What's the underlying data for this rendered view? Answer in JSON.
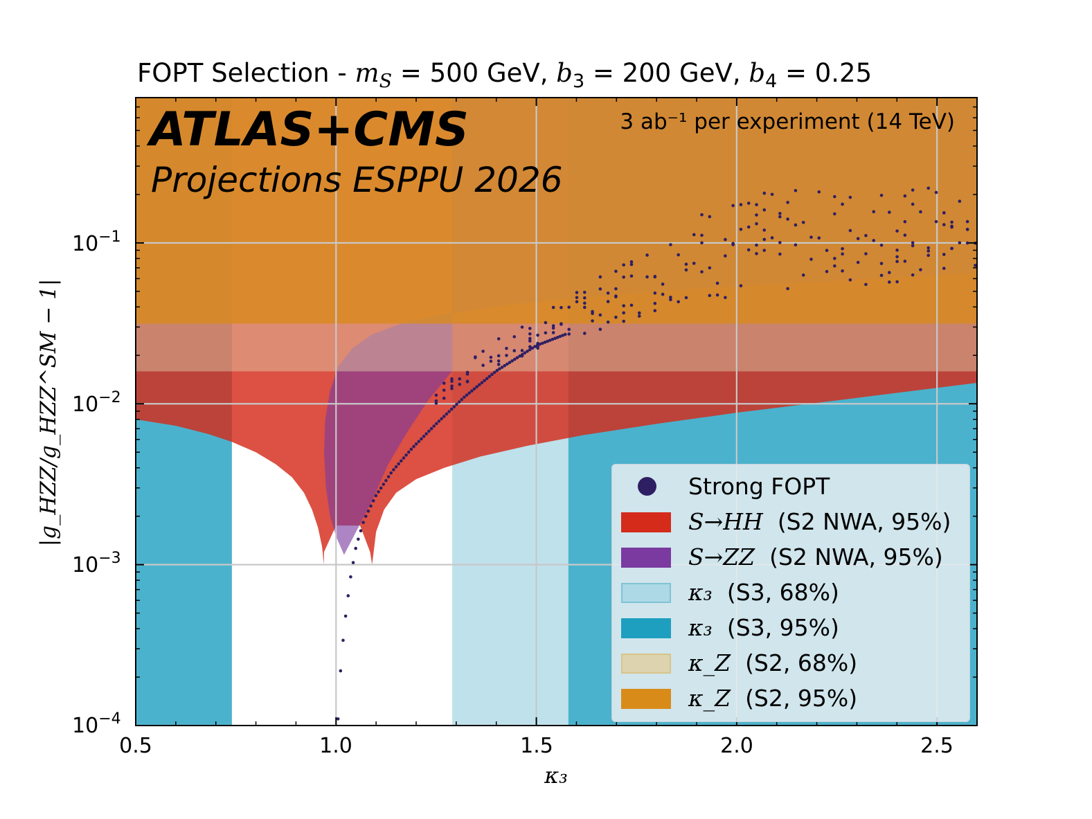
{
  "chart_data": {
    "type": "scatter",
    "title_prefix": "FOPT Selection - ",
    "title_params": [
      {
        "symbol": "m",
        "sub": "S",
        "rel": " = ",
        "value": "500 GeV"
      },
      {
        "symbol": "b",
        "sub": "3",
        "rel": " = ",
        "value": "200 GeV"
      },
      {
        "symbol": "b",
        "sub": "4",
        "rel": " = ",
        "value": "0.25"
      }
    ],
    "title": "FOPT Selection - mS = 500 GeV, b3 = 200 GeV, b4 = 0.25",
    "experiment_label": "ATLAS+CMS",
    "projection_label": "Projections ESPPU 2026",
    "luminosity_label": "3 ab⁻¹  per experiment (14 TeV)",
    "xlabel": "κ₃",
    "ylabel": "|g_HZZ/g_HZZ^SM − 1|",
    "xlim": [
      0.5,
      2.6
    ],
    "ylim": [
      0.0001,
      0.8
    ],
    "yscale": "log",
    "xticks": [
      0.5,
      1.0,
      1.5,
      2.0,
      2.5
    ],
    "xtick_labels": [
      "0.5",
      "1.0",
      "1.5",
      "2.0",
      "2.5"
    ],
    "yticks": [
      0.0001,
      0.001,
      0.01,
      0.1
    ],
    "ytick_labels": [
      {
        "base": "10",
        "exp": "−4"
      },
      {
        "base": "10",
        "exp": "−3"
      },
      {
        "base": "10",
        "exp": "−2"
      },
      {
        "base": "10",
        "exp": "−1"
      }
    ],
    "grid": true,
    "legend_position": "lower-right",
    "bands": {
      "kappa3_S3_68": {
        "color": "#add8e6",
        "ranges": [
          [
            0.5,
            0.74
          ],
          [
            1.29,
            2.6
          ]
        ]
      },
      "kappa3_S3_95": {
        "color": "#1f9fc0",
        "ranges": [
          [
            0.5,
            0.74
          ],
          [
            1.58,
            2.6
          ]
        ]
      },
      "kappaZ_S2_68": {
        "color": "#ddd3ae",
        "y_from": 0.0159
      },
      "kappaZ_S2_95": {
        "color": "#d98b1a",
        "y_from": 0.0315
      }
    },
    "exclusion_S_HH": {
      "color": "#d42b1a",
      "min_y": 0.001,
      "left_edge_x": [
        0.97,
        0.965,
        0.955,
        0.94,
        0.92,
        0.89,
        0.85,
        0.8,
        0.74,
        0.68,
        0.6,
        0.5
      ],
      "left_edge_y": [
        0.001,
        0.0013,
        0.0017,
        0.0022,
        0.0028,
        0.0035,
        0.0042,
        0.005,
        0.0058,
        0.0065,
        0.0073,
        0.008
      ],
      "right_edge_x": [
        1.09,
        1.1,
        1.12,
        1.15,
        1.2,
        1.27,
        1.36,
        1.48,
        1.62,
        1.8,
        2.0,
        2.25,
        2.6
      ],
      "right_edge_y": [
        0.001,
        0.0016,
        0.0022,
        0.0028,
        0.0034,
        0.004,
        0.0047,
        0.0055,
        0.0064,
        0.0075,
        0.0088,
        0.0105,
        0.0135
      ]
    },
    "exclusion_S_ZZ": {
      "color": "#7a3aa0",
      "left_edge_x": [
        1.02,
        1.0,
        0.985,
        0.975,
        0.97,
        0.973,
        0.985,
        1.005,
        1.04,
        1.09,
        1.17,
        1.27,
        1.42,
        1.62,
        1.9,
        2.3,
        2.6
      ],
      "left_edge_y": [
        0.00115,
        0.0015,
        0.002,
        0.003,
        0.005,
        0.008,
        0.012,
        0.017,
        0.022,
        0.027,
        0.032,
        0.036,
        0.041,
        0.046,
        0.052,
        0.059,
        0.065
      ],
      "right_edge_x": [
        1.02,
        1.05,
        1.09,
        1.13,
        1.18,
        1.23,
        1.29
      ],
      "right_edge_y": [
        0.00115,
        0.0016,
        0.0025,
        0.0042,
        0.0068,
        0.0105,
        0.016
      ]
    },
    "strong_fopt": {
      "color": "#2e1f63",
      "lower_branch": {
        "x": [
          1.005,
          1.01,
          1.02,
          1.035,
          1.05,
          1.07,
          1.1,
          1.14,
          1.19,
          1.25,
          1.32,
          1.4,
          1.5,
          1.62
        ],
        "y": [
          0.00011,
          0.0002,
          0.0004,
          0.0008,
          0.0013,
          0.0019,
          0.0027,
          0.0038,
          0.0053,
          0.0075,
          0.011,
          0.016,
          0.023,
          0.03
        ]
      },
      "band": {
        "x": [
          1.2,
          1.3,
          1.4,
          1.5,
          1.6,
          1.7,
          1.8,
          1.9,
          2.0,
          2.2,
          2.4,
          2.6
        ],
        "y_low": [
          0.008,
          0.012,
          0.016,
          0.021,
          0.026,
          0.031,
          0.036,
          0.041,
          0.045,
          0.05,
          0.055,
          0.06
        ],
        "y_high": [
          0.01,
          0.016,
          0.025,
          0.035,
          0.05,
          0.075,
          0.11,
          0.16,
          0.2,
          0.22,
          0.23,
          0.23
        ]
      }
    }
  },
  "legend": {
    "strong": {
      "name": "Strong FOPT",
      "color": "#2e1f63"
    },
    "hh": {
      "prefix": "S→HH",
      "name": "(S2 NWA, 95%)",
      "color": "#d42b1a"
    },
    "zz": {
      "prefix": "S→ZZ",
      "name": "(S2 NWA, 95%)",
      "color": "#7a3aa0"
    },
    "k3_68": {
      "prefix": "κ₃",
      "name": "(S3, 68%)",
      "color": "#add8e6"
    },
    "k3_95": {
      "prefix": "κ₃",
      "name": "(S3, 95%)",
      "color": "#1f9fc0"
    },
    "kz_68": {
      "prefix": "κ_Z",
      "name": "(S2, 68%)",
      "color": "#ddd3ae"
    },
    "kz_95": {
      "prefix": "κ_Z",
      "name": "(S2, 95%)",
      "color": "#d98b1a"
    }
  }
}
